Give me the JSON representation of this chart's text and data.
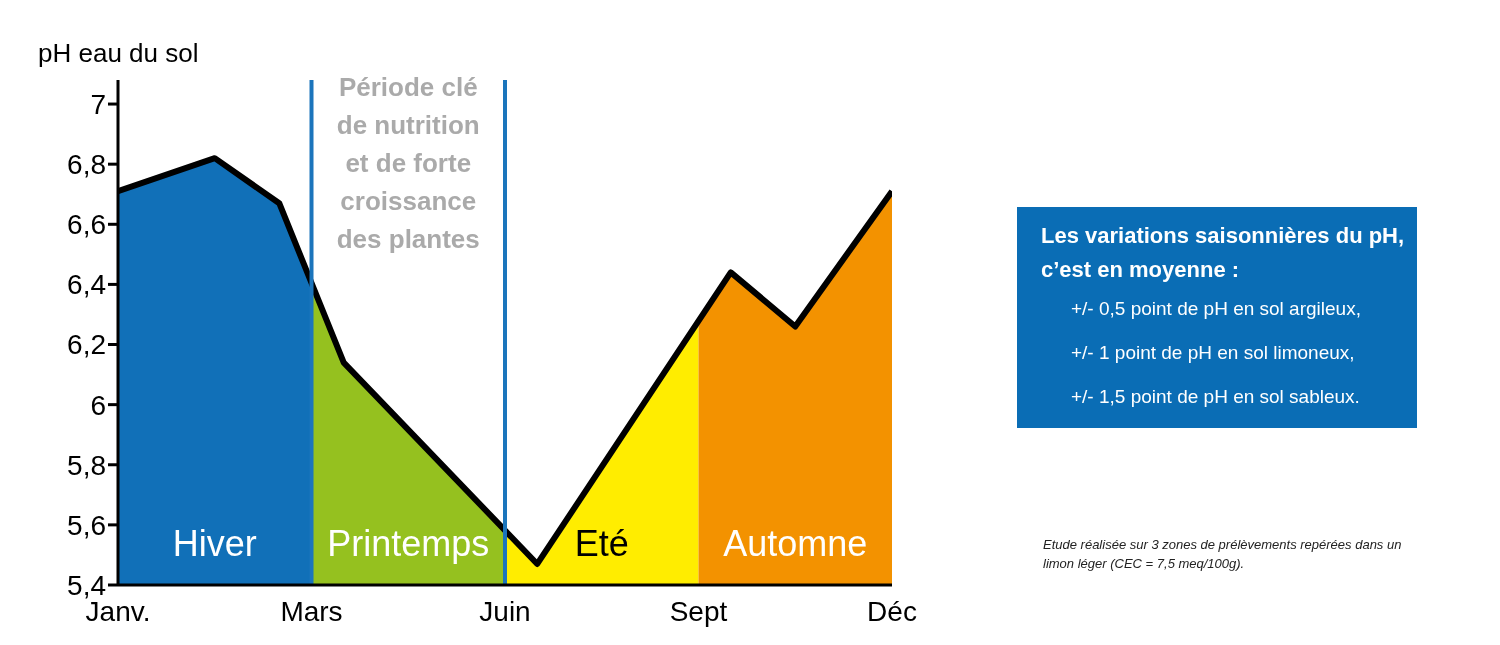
{
  "chart_data": {
    "type": "area",
    "ylabel": "pH eau du sol",
    "categories": [
      "Janv.",
      null,
      null,
      null,
      null,
      null,
      "Mars",
      null,
      null,
      null,
      null,
      null,
      "Juin",
      null,
      null,
      null,
      null,
      null,
      "Sept",
      null,
      null,
      null,
      null,
      null,
      "Déc"
    ],
    "ylim": [
      5.4,
      7.08
    ],
    "yticks": [
      {
        "value": 5.4,
        "label": "5,4"
      },
      {
        "value": 5.6,
        "label": "5,6"
      },
      {
        "value": 5.8,
        "label": "5,8"
      },
      {
        "value": 6,
        "label": "6"
      },
      {
        "value": 6.2,
        "label": "6,2"
      },
      {
        "value": 6.4,
        "label": "6,4"
      },
      {
        "value": 6.6,
        "label": "6,6"
      },
      {
        "value": 6.8,
        "label": "6,8"
      },
      {
        "value": 7,
        "label": "7"
      }
    ],
    "series": [
      {
        "name": "Hiver",
        "color": "#1170b8",
        "values": [
          6.71,
          null,
          null,
          6.82,
          null,
          6.67,
          6.4,
          null,
          null,
          null,
          null,
          null,
          null,
          null,
          null,
          null,
          null,
          null,
          null,
          null,
          null,
          null,
          null,
          null,
          null
        ]
      },
      {
        "name": "Printemps",
        "color": "#95c11f",
        "values": [
          null,
          null,
          null,
          null,
          null,
          null,
          6.4,
          6.14,
          null,
          null,
          null,
          null,
          5.58,
          null,
          null,
          null,
          null,
          null,
          null,
          null,
          null,
          null,
          null,
          null,
          null
        ]
      },
      {
        "name": "Eté",
        "color": "#ffed00",
        "values": [
          null,
          null,
          null,
          null,
          null,
          null,
          null,
          null,
          null,
          null,
          null,
          null,
          5.58,
          5.47,
          null,
          null,
          null,
          null,
          6.28,
          null,
          null,
          null,
          null,
          null,
          null
        ]
      },
      {
        "name": "Automne",
        "color": "#f39200",
        "values": [
          null,
          null,
          null,
          null,
          null,
          null,
          null,
          null,
          null,
          null,
          null,
          null,
          null,
          null,
          null,
          null,
          null,
          null,
          6.28,
          6.44,
          null,
          6.26,
          null,
          null,
          6.71
        ]
      },
      {
        "type": "line",
        "color": "#000000",
        "values": [
          6.71,
          null,
          null,
          6.82,
          null,
          6.67,
          null,
          6.14,
          null,
          null,
          null,
          null,
          null,
          5.47,
          null,
          null,
          null,
          null,
          null,
          6.44,
          null,
          6.26,
          null,
          null,
          6.71
        ]
      }
    ],
    "ref_lines": [
      {
        "axis": "x",
        "value": "Mars",
        "color": "#1b75bc"
      },
      {
        "axis": "x",
        "value": "Juin",
        "color": "#1b75bc"
      }
    ],
    "annotations": [
      "Période clé de nutrition et de forte croissance des plantes",
      "Les variations saisonnières du pH, c’est en moyenne :",
      "+/- 0,5 point de pH en sol argileux,",
      "+/- 1 point de pH en sol limoneux,",
      "+/- 1,5 point de pH en sol sableux.",
      "Etude réalisée sur 3 zones de prélèvements repérées dans un limon léger (CEC = 7,5 meq/100g)."
    ]
  }
}
